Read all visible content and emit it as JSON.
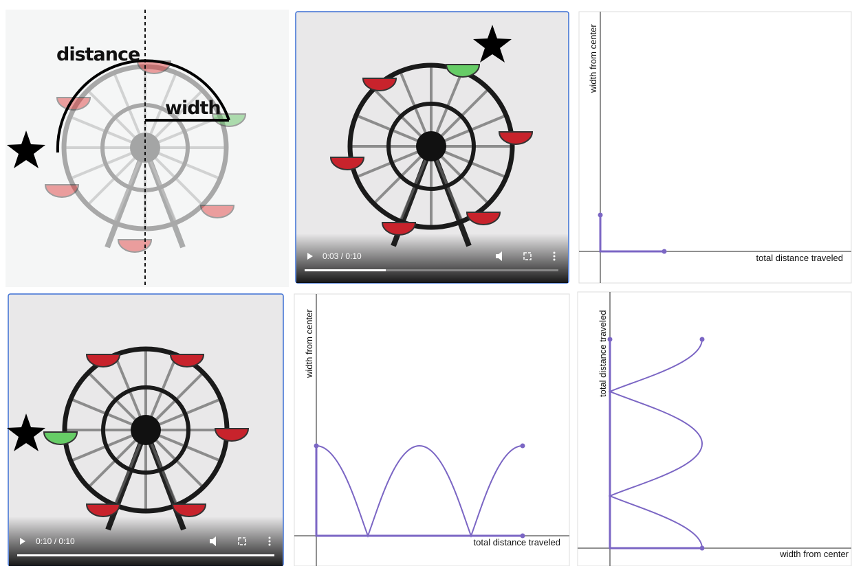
{
  "illustration": {
    "distance_label": "distance",
    "width_label": "width"
  },
  "video_top": {
    "time": "0:03 / 0:10"
  },
  "graph_top": {
    "y_label": "width from center",
    "x_label": "total distance traveled"
  },
  "video_bottom": {
    "time": "0:10 / 0:10"
  },
  "graph_middle": {
    "y_label": "width from center",
    "x_label": "total distance traveled"
  },
  "graph_right": {
    "y_label": "total distance traveled",
    "x_label": "width from center"
  }
}
